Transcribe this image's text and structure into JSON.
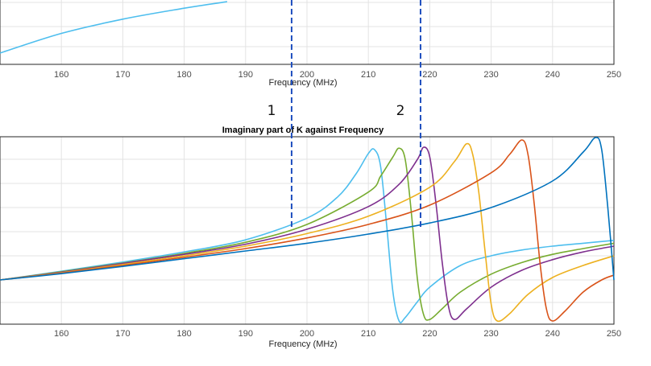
{
  "chart_data": [
    {
      "type": "line",
      "title": "",
      "xlabel": "Frequency (MHz)",
      "ylabel": "",
      "xlim": [
        150,
        250
      ],
      "xticks": [
        160,
        170,
        180,
        190,
        200,
        210,
        220,
        230,
        240,
        250
      ],
      "grid": true,
      "legend": "none",
      "series": [
        {
          "color": "#4DBEEE",
          "x": [
            150,
            160,
            170,
            180,
            187
          ],
          "y": [
            0.0,
            0.36,
            0.62,
            0.82,
            0.94
          ]
        }
      ]
    },
    {
      "type": "line",
      "title": "Imaginary part of K against Frequency",
      "xlabel": "Frequency (MHz)",
      "ylabel": "",
      "xlim": [
        150,
        250
      ],
      "xticks": [
        160,
        170,
        180,
        190,
        200,
        210,
        220,
        230,
        240,
        250
      ],
      "grid": true,
      "legend": "none",
      "series": [
        {
          "color": "#4DBEEE",
          "x": [
            150,
            160,
            170,
            180,
            190,
            200,
            205,
            208,
            210,
            211,
            212,
            213,
            214,
            215,
            216,
            218,
            220,
            225,
            230,
            235,
            240,
            245,
            250
          ],
          "y": [
            0.0,
            0.18,
            0.37,
            0.58,
            0.83,
            1.28,
            1.72,
            2.2,
            2.62,
            2.7,
            2.35,
            1.1,
            -0.25,
            -0.85,
            -0.78,
            -0.45,
            -0.15,
            0.3,
            0.5,
            0.62,
            0.7,
            0.76,
            0.82
          ]
        },
        {
          "color": "#77AC30",
          "x": [
            150,
            160,
            170,
            180,
            190,
            200,
            210,
            212,
            214,
            215,
            216,
            217,
            218,
            219,
            220,
            222,
            225,
            230,
            235,
            240,
            245,
            250
          ],
          "y": [
            0.0,
            0.17,
            0.35,
            0.55,
            0.78,
            1.15,
            1.82,
            2.15,
            2.55,
            2.73,
            2.5,
            1.4,
            0.0,
            -0.72,
            -0.82,
            -0.6,
            -0.25,
            0.12,
            0.36,
            0.53,
            0.65,
            0.76
          ]
        },
        {
          "color": "#7E2F8E",
          "x": [
            150,
            160,
            170,
            180,
            190,
            200,
            210,
            215,
            218,
            219,
            220,
            221,
            222,
            223,
            224,
            226,
            230,
            235,
            240,
            245,
            250
          ],
          "y": [
            0.0,
            0.16,
            0.34,
            0.53,
            0.74,
            1.05,
            1.52,
            1.98,
            2.5,
            2.75,
            2.55,
            1.6,
            0.4,
            -0.52,
            -0.82,
            -0.6,
            -0.15,
            0.2,
            0.42,
            0.58,
            0.7
          ]
        },
        {
          "color": "#EDB120",
          "x": [
            150,
            160,
            170,
            180,
            190,
            200,
            210,
            220,
            224,
            226,
            227,
            228,
            229,
            230,
            231,
            233,
            236,
            240,
            245,
            250
          ],
          "y": [
            0.0,
            0.15,
            0.32,
            0.5,
            0.7,
            0.96,
            1.32,
            1.92,
            2.45,
            2.82,
            2.6,
            1.8,
            0.6,
            -0.5,
            -0.85,
            -0.7,
            -0.3,
            0.05,
            0.3,
            0.5
          ]
        },
        {
          "color": "#D95319",
          "x": [
            150,
            160,
            170,
            180,
            190,
            200,
            210,
            220,
            230,
            233,
            235,
            236,
            237,
            238,
            239,
            240,
            242,
            245,
            248,
            250
          ],
          "y": [
            0.0,
            0.14,
            0.3,
            0.47,
            0.65,
            0.87,
            1.15,
            1.55,
            2.22,
            2.6,
            2.9,
            2.6,
            1.6,
            0.3,
            -0.6,
            -0.85,
            -0.65,
            -0.25,
            0.0,
            0.1
          ]
        },
        {
          "color": "#0072BD",
          "x": [
            150,
            160,
            170,
            180,
            190,
            200,
            210,
            220,
            230,
            240,
            245,
            247,
            248,
            249,
            250
          ],
          "y": [
            0.0,
            0.13,
            0.28,
            0.44,
            0.6,
            0.76,
            0.95,
            1.18,
            1.5,
            2.05,
            2.65,
            2.95,
            2.7,
            1.5,
            0.0
          ]
        }
      ]
    }
  ],
  "annotations": {
    "marker1_label": "1",
    "marker2_label": "2",
    "marker1_x": 197.5,
    "marker2_x": 218.5
  }
}
